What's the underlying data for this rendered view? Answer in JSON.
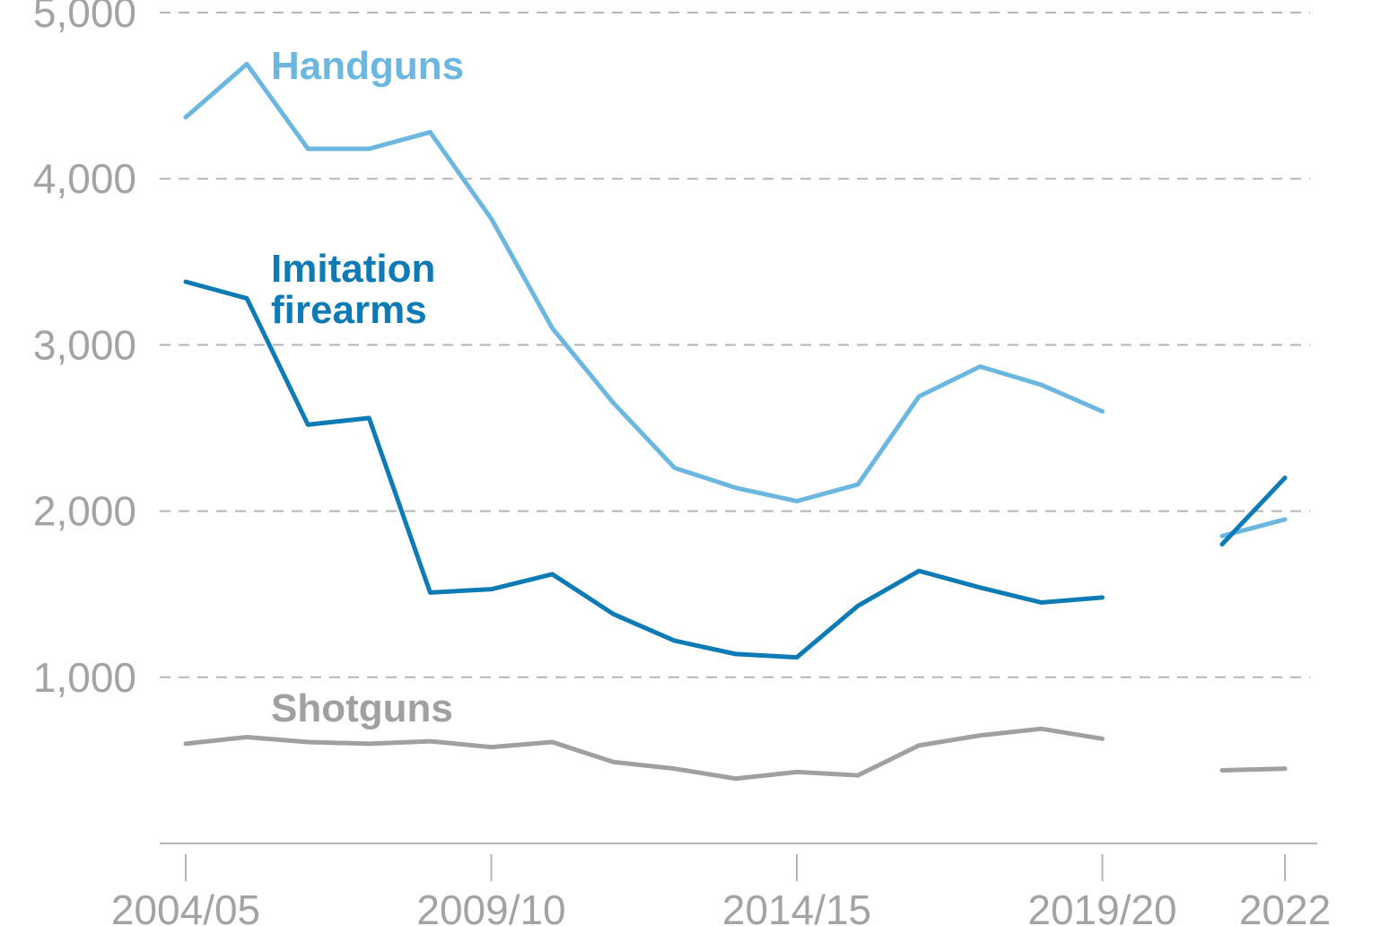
{
  "chart_data": {
    "type": "line",
    "title": "",
    "xlabel": "",
    "ylabel": "",
    "x": [
      "2004/05",
      "2005/06",
      "2006/07",
      "2007/08",
      "2008/09",
      "2009/10",
      "2010/11",
      "2011/12",
      "2012/13",
      "2013/14",
      "2014/15",
      "2015/16",
      "2016/17",
      "2017/18",
      "2018/19",
      "2019/20",
      "2021",
      "2022"
    ],
    "x_tick_labels": [
      "2004/05",
      "2009/10",
      "2014/15",
      "2019/20",
      "2022"
    ],
    "ylim": [
      0,
      5000
    ],
    "y_ticks": [
      1000,
      2000,
      3000,
      4000,
      5000
    ],
    "y_tick_labels": [
      "1,000",
      "2,000",
      "3,000",
      "4,000",
      "5,000"
    ],
    "grid": true,
    "legend": "inline labels",
    "series": [
      {
        "name": "Handguns",
        "color": "#6cb7e0",
        "segments": [
          {
            "x": [
              "2004/05",
              "2005/06",
              "2006/07",
              "2007/08",
              "2008/09",
              "2009/10",
              "2010/11",
              "2011/12",
              "2012/13",
              "2013/14",
              "2014/15",
              "2015/16",
              "2016/17",
              "2017/18",
              "2018/19",
              "2019/20"
            ],
            "values": [
              4370,
              4690,
              4180,
              4180,
              4280,
              3760,
              3100,
              2650,
              2260,
              2140,
              2060,
              2160,
              2690,
              2870,
              2760,
              2600
            ]
          },
          {
            "x": [
              "2021",
              "2022"
            ],
            "values": [
              1850,
              1950
            ]
          }
        ]
      },
      {
        "name": "Imitation firearms",
        "color": "#0f7bb5",
        "segments": [
          {
            "x": [
              "2004/05",
              "2005/06",
              "2006/07",
              "2007/08",
              "2008/09",
              "2009/10",
              "2010/11",
              "2011/12",
              "2012/13",
              "2013/14",
              "2014/15",
              "2015/16",
              "2016/17",
              "2017/18",
              "2018/19",
              "2019/20"
            ],
            "values": [
              3380,
              3280,
              2520,
              2560,
              1510,
              1530,
              1620,
              1380,
              1220,
              1140,
              1120,
              1430,
              1640,
              1540,
              1450,
              1480
            ]
          },
          {
            "x": [
              "2021",
              "2022"
            ],
            "values": [
              1800,
              2200
            ]
          }
        ]
      },
      {
        "name": "Shotguns",
        "color": "#a0a0a0",
        "segments": [
          {
            "x": [
              "2004/05",
              "2005/06",
              "2006/07",
              "2007/08",
              "2008/09",
              "2009/10",
              "2010/11",
              "2011/12",
              "2012/13",
              "2013/14",
              "2014/15",
              "2015/16",
              "2016/17",
              "2017/18",
              "2018/19",
              "2019/20"
            ],
            "values": [
              600,
              640,
              610,
              600,
              615,
              580,
              610,
              490,
              450,
              390,
              430,
              410,
              590,
              650,
              690,
              630
            ]
          },
          {
            "x": [
              "2021",
              "2022"
            ],
            "values": [
              440,
              450
            ]
          }
        ]
      }
    ]
  }
}
